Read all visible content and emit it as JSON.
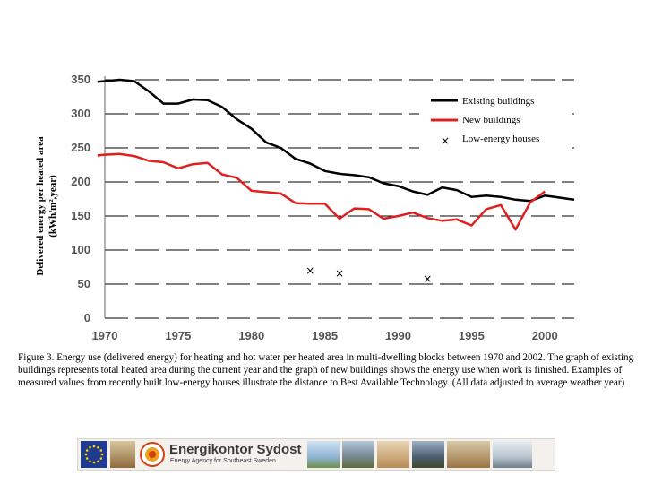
{
  "chart_data": {
    "type": "line",
    "title": "",
    "xlabel": "",
    "ylabel_line1": "Delivered energy per heated area",
    "ylabel_line2": "(kWh/m²,year)",
    "xlim": [
      1970,
      2002
    ],
    "ylim": [
      0,
      350
    ],
    "xticks": [
      1970,
      1975,
      1980,
      1985,
      1990,
      1995,
      2000
    ],
    "yticks": [
      0,
      50,
      100,
      150,
      200,
      250,
      300,
      350
    ],
    "grid": "horizontal dashed",
    "legend_position": "top-right",
    "series": [
      {
        "name": "Existing buildings",
        "color": "#000000",
        "x": [
          1969.5,
          1970,
          1971,
          1972,
          1973,
          1974,
          1975,
          1976,
          1977,
          1978,
          1979,
          1980,
          1981,
          1982,
          1983,
          1984,
          1985,
          1986,
          1987,
          1988,
          1989,
          1990,
          1991,
          1992,
          1993,
          1994,
          1995,
          1996,
          1997,
          1998,
          1999,
          2000,
          2001,
          2002
        ],
        "values": [
          347,
          348,
          350,
          348,
          333,
          315,
          315,
          321,
          320,
          310,
          292,
          278,
          258,
          250,
          234,
          227,
          216,
          212,
          210,
          207,
          198,
          194,
          186,
          181,
          192,
          188,
          178,
          180,
          178,
          174,
          172,
          180,
          177,
          174
        ]
      },
      {
        "name": "New buildings",
        "color": "#e02020",
        "x": [
          1969.5,
          1970,
          1971,
          1972,
          1973,
          1974,
          1975,
          1976,
          1977,
          1978,
          1979,
          1980,
          1981,
          1982,
          1983,
          1984,
          1985,
          1986,
          1987,
          1988,
          1989,
          1990,
          1991,
          1992,
          1993,
          1994,
          1995,
          1996,
          1997,
          1998,
          1999,
          2000
        ],
        "values": [
          239,
          240,
          241,
          238,
          231,
          229,
          220,
          226,
          228,
          211,
          206,
          187,
          185,
          183,
          169,
          168,
          168,
          146,
          161,
          160,
          146,
          150,
          155,
          147,
          143,
          145,
          136,
          160,
          166,
          130,
          170,
          186
        ]
      },
      {
        "name": "Low-energy houses",
        "marker": "×",
        "color": "#000000",
        "x": [
          1984,
          1986,
          1992
        ],
        "values": [
          70,
          66,
          58
        ]
      }
    ]
  },
  "caption": "Figure 3. Energy use (delivered energy) for heating and hot water per heated area in multi-dwelling blocks between 1970 and 2002. The graph of existing buildings represents total heated area during the current year and the graph of new buildings shows the energy use when work is finished. Examples of measured values from recently built low-energy houses illustrate the distance to Best Available Technology. (All data adjusted to average weather year)",
  "footer": {
    "brand_name": "Energikontor Sydost",
    "brand_subtitle": "Energy Agency for Southeast Sweden"
  },
  "colors": {
    "axis_text": "#555555",
    "existing": "#000000",
    "new": "#e02020"
  }
}
